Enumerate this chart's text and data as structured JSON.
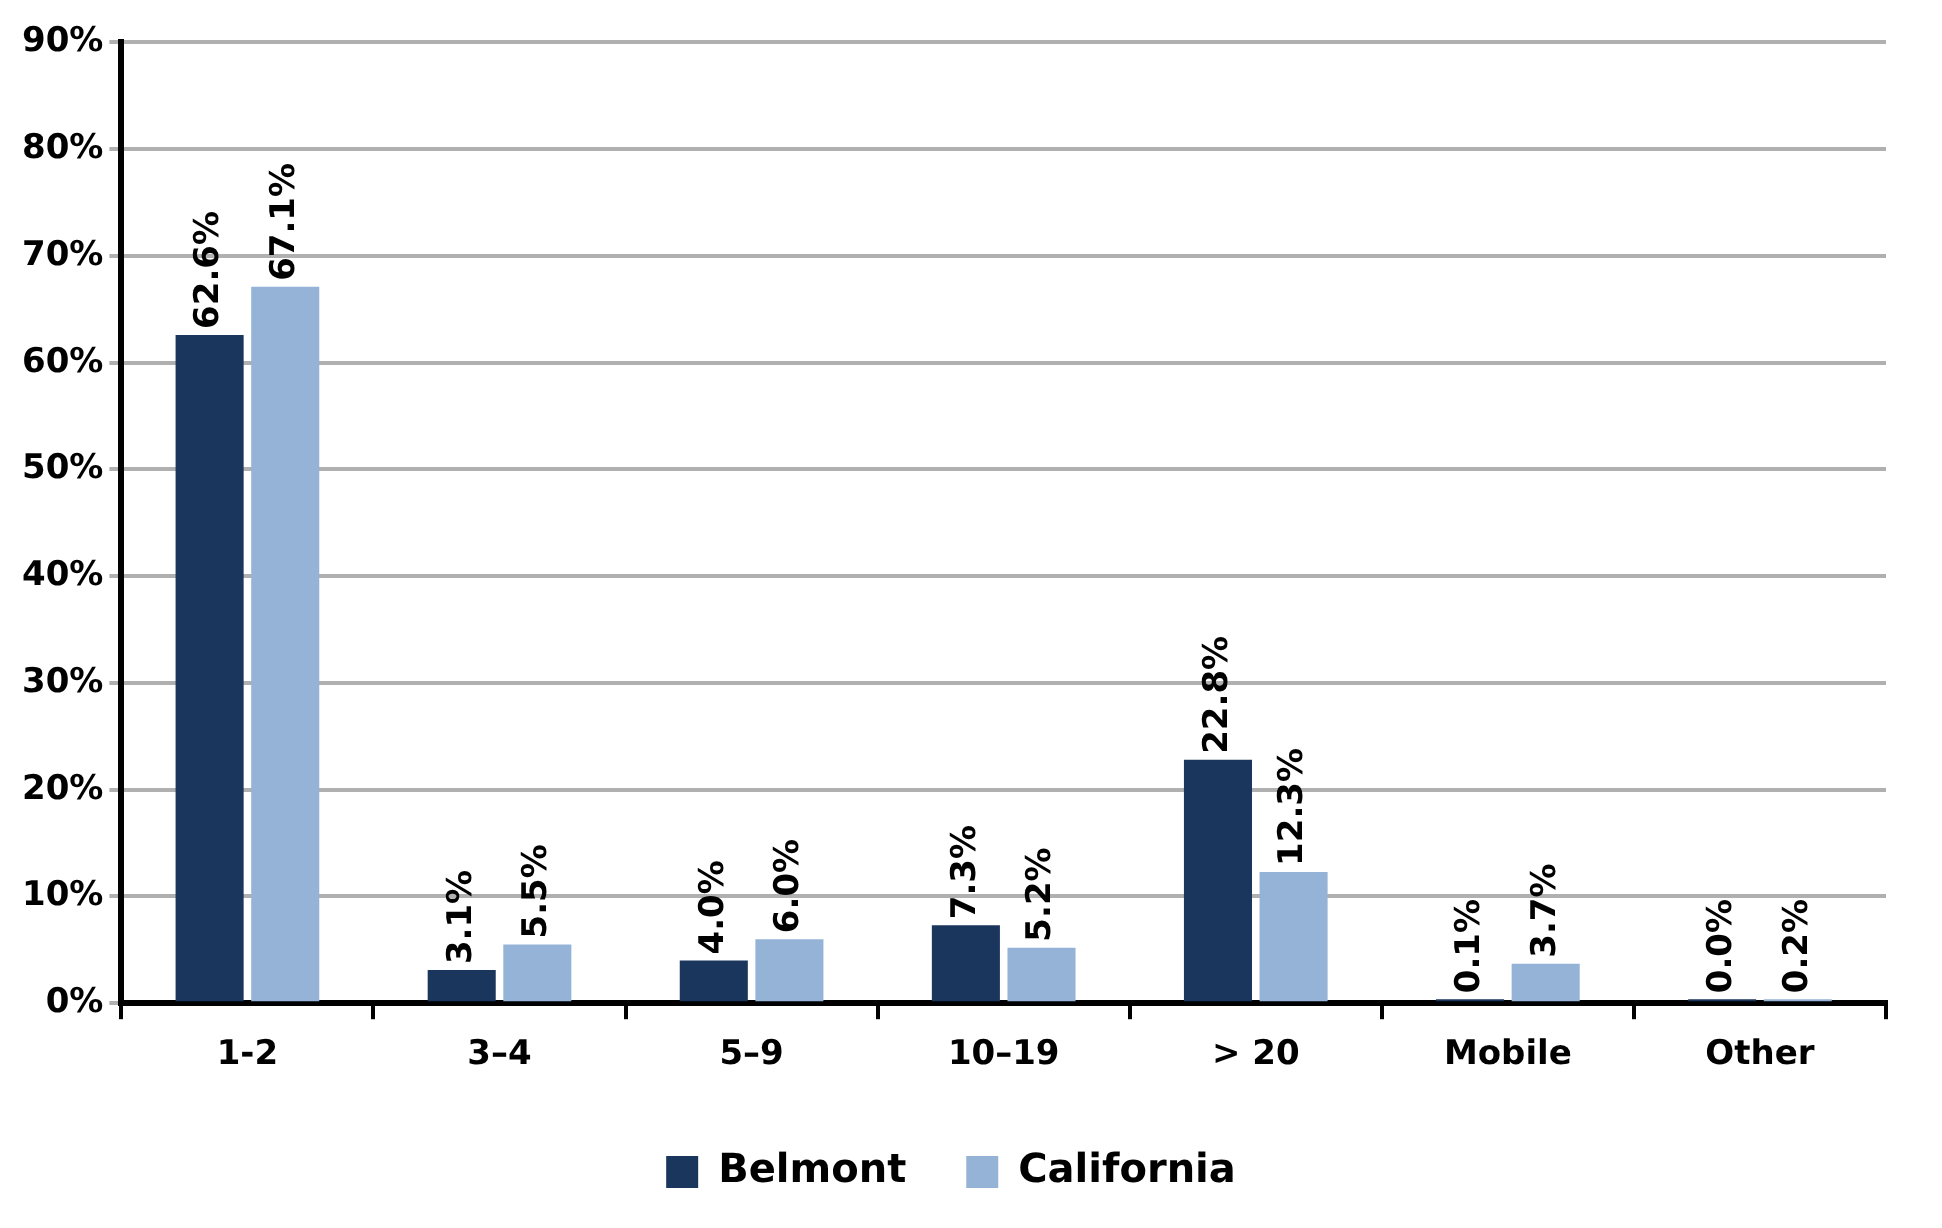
{
  "chart_data": {
    "type": "bar",
    "categories": [
      "1-2",
      "3–4",
      "5–9",
      "10–19",
      "> 20",
      "Mobile",
      "Other"
    ],
    "series": [
      {
        "name": "Belmont",
        "color": "#1b365d",
        "values": [
          62.6,
          3.1,
          4.0,
          7.3,
          22.8,
          0.1,
          0.0
        ],
        "value_labels": [
          "62.6%",
          "3.1%",
          "4.0%",
          "7.3%",
          "22.8%",
          "0.1%",
          "0.0%"
        ]
      },
      {
        "name": "California",
        "color": "#95b3d7",
        "values": [
          67.1,
          5.5,
          6.0,
          5.2,
          12.3,
          3.7,
          0.2
        ],
        "value_labels": [
          "67.1%",
          "5.5%",
          "6.0%",
          "5.2%",
          "12.3%",
          "3.7%",
          "0.2%"
        ]
      }
    ],
    "ylim": [
      0,
      90
    ],
    "yticks": [
      {
        "value": 0,
        "label": "0%"
      },
      {
        "value": 10,
        "label": "10%"
      },
      {
        "value": 20,
        "label": "20%"
      },
      {
        "value": 30,
        "label": "30%"
      },
      {
        "value": 40,
        "label": "40%"
      },
      {
        "value": 50,
        "label": "50%"
      },
      {
        "value": 60,
        "label": "60%"
      },
      {
        "value": 70,
        "label": "70%"
      },
      {
        "value": 80,
        "label": "80%"
      },
      {
        "value": 90,
        "label": "90%"
      }
    ],
    "grid": "y",
    "legend": "bottom"
  }
}
